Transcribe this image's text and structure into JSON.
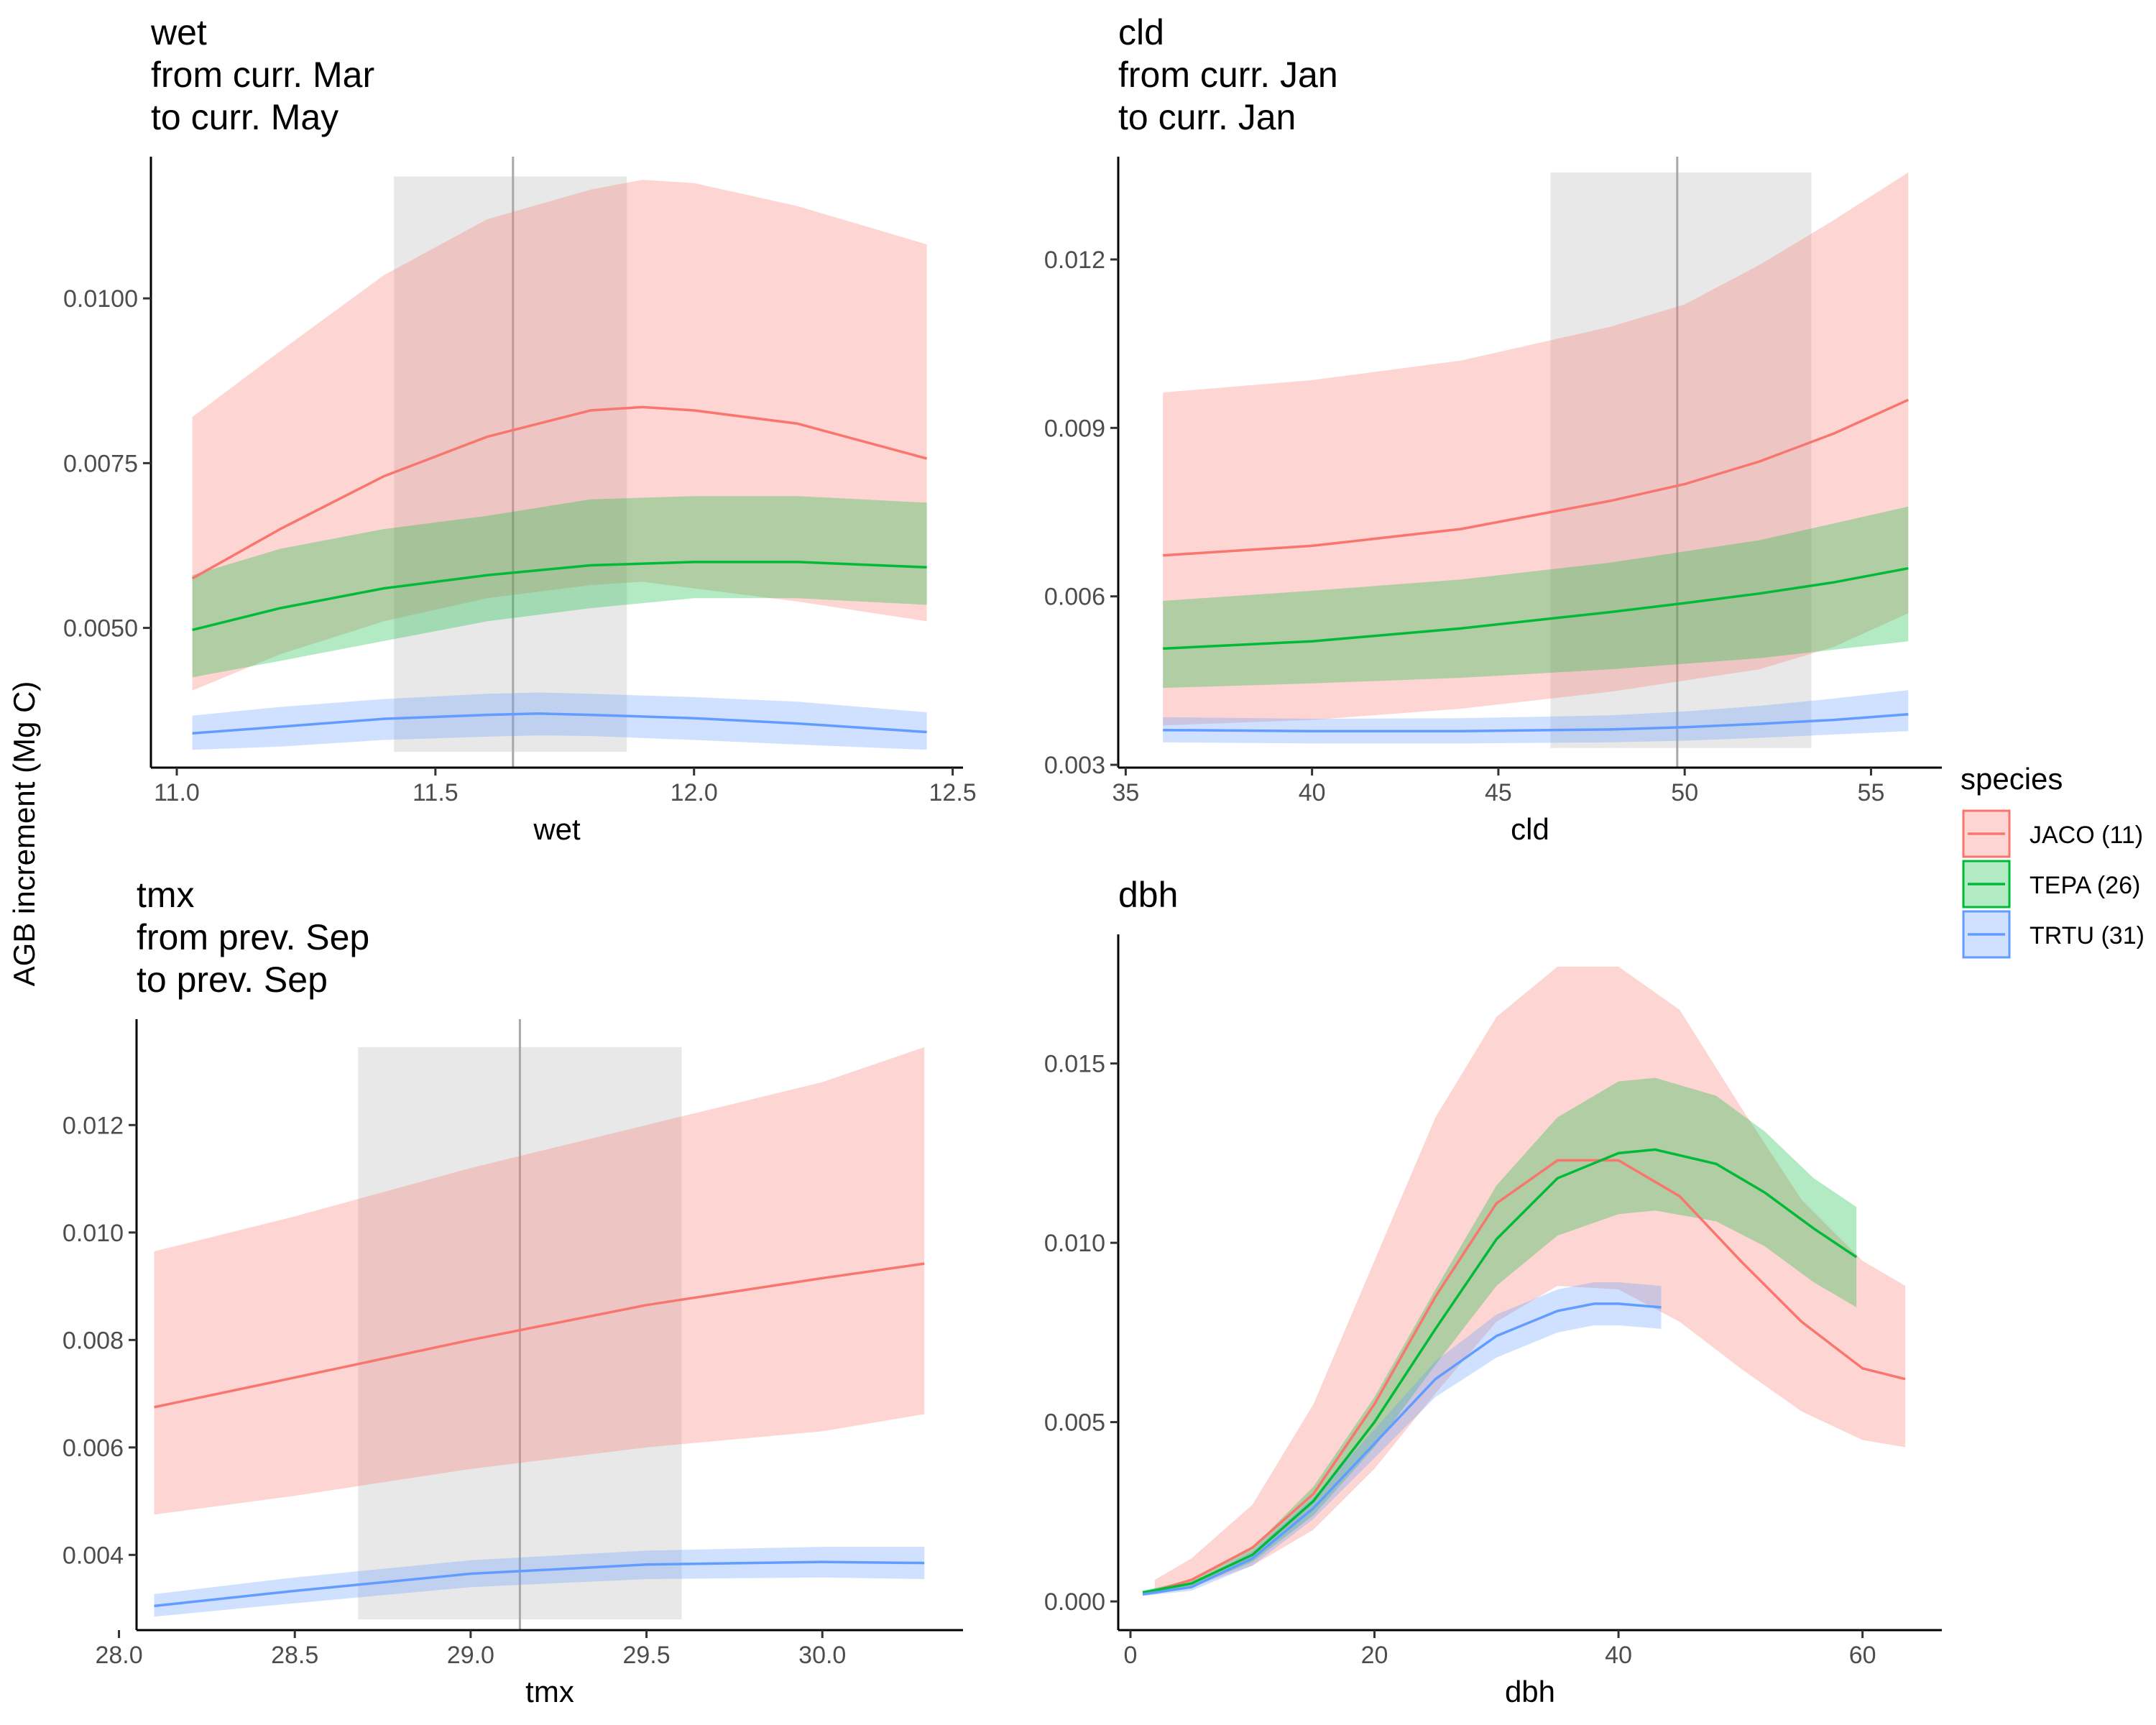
{
  "figure": {
    "y_axis_title": "AGB increment (Mg C)",
    "legend": {
      "title": "species",
      "placement": "right",
      "items": [
        {
          "label": "JACO (11)",
          "color": "#F8766D"
        },
        {
          "label": "TEPA (26)",
          "color": "#00BA38"
        },
        {
          "label": "TRTU (31)",
          "color": "#619CFF"
        }
      ]
    }
  },
  "chart_data": [
    {
      "type": "line",
      "title_lines": [
        "wet",
        "from curr. Mar",
        "to curr. May"
      ],
      "xlabel": "wet",
      "ylabel": "AGB increment (Mg C)",
      "xlim": [
        10.95,
        12.52
      ],
      "ylim": [
        0.00288,
        0.01215
      ],
      "xticks": [
        11.0,
        11.5,
        12.0,
        12.5
      ],
      "xtick_labels": [
        "11.0",
        "11.5",
        "12.0",
        "12.5"
      ],
      "yticks": [
        0.005,
        0.0075,
        0.01
      ],
      "ytick_labels": [
        "0.0050",
        "0.0075",
        "0.0100"
      ],
      "window": {
        "x0": 11.42,
        "x1": 11.87,
        "center": 11.65,
        "y0": 0.00312,
        "y1": 0.01185
      },
      "series": [
        {
          "species": "JACO (11)",
          "color": "#F8766D",
          "x": [
            11.03,
            11.2,
            11.4,
            11.6,
            11.8,
            11.9,
            12.0,
            12.2,
            12.45
          ],
          "y": [
            0.00575,
            0.0065,
            0.0073,
            0.0079,
            0.0083,
            0.00835,
            0.0083,
            0.0081,
            0.00757
          ],
          "lower": [
            0.00405,
            0.0046,
            0.0051,
            0.00545,
            0.00565,
            0.0057,
            0.0056,
            0.0054,
            0.0051
          ],
          "upper": [
            0.0082,
            0.0092,
            0.01035,
            0.0112,
            0.01165,
            0.0118,
            0.01175,
            0.0114,
            0.01082
          ]
        },
        {
          "species": "TEPA (26)",
          "color": "#00BA38",
          "x": [
            11.03,
            11.2,
            11.4,
            11.6,
            11.8,
            12.0,
            12.2,
            12.45
          ],
          "y": [
            0.00497,
            0.0053,
            0.0056,
            0.0058,
            0.00595,
            0.006,
            0.006,
            0.00592
          ],
          "lower": [
            0.00425,
            0.0045,
            0.0048,
            0.0051,
            0.0053,
            0.00545,
            0.00545,
            0.00535
          ],
          "upper": [
            0.0058,
            0.0062,
            0.0065,
            0.0067,
            0.00695,
            0.007,
            0.007,
            0.0069
          ]
        },
        {
          "species": "TRTU (31)",
          "color": "#619CFF",
          "x": [
            11.03,
            11.2,
            11.4,
            11.6,
            11.7,
            11.8,
            12.0,
            12.2,
            12.45
          ],
          "y": [
            0.0034,
            0.0035,
            0.00362,
            0.00368,
            0.0037,
            0.00368,
            0.00363,
            0.00355,
            0.00342
          ],
          "lower": [
            0.00315,
            0.0032,
            0.0033,
            0.00335,
            0.00337,
            0.00336,
            0.0033,
            0.00323,
            0.00315
          ],
          "upper": [
            0.00367,
            0.0038,
            0.00392,
            0.004,
            0.00402,
            0.004,
            0.00395,
            0.00388,
            0.00372
          ]
        }
      ]
    },
    {
      "type": "line",
      "title_lines": [
        "cld",
        "from curr. Jan",
        "to curr. Jan"
      ],
      "xlabel": "cld",
      "ylabel": "AGB increment (Mg C)",
      "xlim": [
        34.8,
        56.9
      ],
      "ylim": [
        0.00295,
        0.01383
      ],
      "xticks": [
        35,
        40,
        45,
        50,
        55
      ],
      "xtick_labels": [
        "35",
        "40",
        "45",
        "50",
        "55"
      ],
      "yticks": [
        0.003,
        0.006,
        0.009,
        0.012
      ],
      "ytick_labels": [
        "0.003",
        "0.006",
        "0.009",
        "0.012"
      ],
      "window": {
        "x0": 46.4,
        "x1": 53.4,
        "center": 49.8,
        "y0": 0.0033,
        "y1": 0.01355
      },
      "series": [
        {
          "species": "JACO (11)",
          "color": "#F8766D",
          "x": [
            36,
            40,
            44,
            48,
            50,
            52,
            54,
            56
          ],
          "y": [
            0.00673,
            0.0069,
            0.0072,
            0.0077,
            0.008,
            0.0084,
            0.0089,
            0.0095
          ],
          "lower": [
            0.0037,
            0.0038,
            0.004,
            0.0043,
            0.0045,
            0.0047,
            0.0051,
            0.0057
          ],
          "upper": [
            0.00963,
            0.00985,
            0.0102,
            0.0108,
            0.0112,
            0.0119,
            0.0127,
            0.01355
          ]
        },
        {
          "species": "TEPA (26)",
          "color": "#00BA38",
          "x": [
            36,
            40,
            44,
            48,
            50,
            52,
            54,
            56
          ],
          "y": [
            0.00507,
            0.0052,
            0.00543,
            0.00572,
            0.00588,
            0.00605,
            0.00625,
            0.0065
          ],
          "lower": [
            0.00437,
            0.00445,
            0.00455,
            0.0047,
            0.0048,
            0.0049,
            0.00505,
            0.0052
          ],
          "upper": [
            0.00592,
            0.0061,
            0.0063,
            0.0066,
            0.0068,
            0.007,
            0.0073,
            0.0076
          ]
        },
        {
          "species": "TRTU (31)",
          "color": "#619CFF",
          "x": [
            36,
            40,
            44,
            48,
            50,
            52,
            54,
            56
          ],
          "y": [
            0.00362,
            0.0036,
            0.0036,
            0.00363,
            0.00367,
            0.00373,
            0.0038,
            0.0039
          ],
          "lower": [
            0.0034,
            0.00338,
            0.00338,
            0.0034,
            0.00343,
            0.00348,
            0.00354,
            0.0036
          ],
          "upper": [
            0.00385,
            0.00382,
            0.00383,
            0.00388,
            0.00395,
            0.00405,
            0.00418,
            0.00433
          ]
        }
      ]
    },
    {
      "type": "line",
      "title_lines": [
        "tmx",
        "from prev. Sep",
        "to prev. Sep"
      ],
      "xlabel": "tmx",
      "ylabel": "AGB increment (Mg C)",
      "xlim": [
        28.05,
        30.4
      ],
      "ylim": [
        0.0026,
        0.01397
      ],
      "xticks": [
        28.0,
        28.5,
        29.0,
        29.5,
        30.0
      ],
      "xtick_labels": [
        "28.0",
        "28.5",
        "29.0",
        "29.5",
        "30.0"
      ],
      "yticks": [
        0.004,
        0.006,
        0.008,
        0.01,
        0.012
      ],
      "ytick_labels": [
        "0.004",
        "0.006",
        "0.008",
        "0.010",
        "0.012"
      ],
      "window": {
        "x0": 28.68,
        "x1": 29.6,
        "center": 29.14,
        "y0": 0.0028,
        "y1": 0.01345
      },
      "series": [
        {
          "species": "JACO (11)",
          "color": "#F8766D",
          "x": [
            28.1,
            28.5,
            29.0,
            29.5,
            30.0,
            30.29
          ],
          "y": [
            0.00675,
            0.0073,
            0.008,
            0.00865,
            0.00915,
            0.00942
          ],
          "lower": [
            0.00475,
            0.0051,
            0.0056,
            0.006,
            0.0063,
            0.00662
          ],
          "upper": [
            0.00965,
            0.0103,
            0.0112,
            0.012,
            0.0128,
            0.01345
          ]
        },
        {
          "species": "TRTU (31)",
          "color": "#619CFF",
          "x": [
            28.1,
            28.5,
            29.0,
            29.5,
            30.0,
            30.29
          ],
          "y": [
            0.00305,
            0.00333,
            0.00365,
            0.00382,
            0.00387,
            0.00385
          ],
          "lower": [
            0.00285,
            0.0031,
            0.0034,
            0.00355,
            0.00358,
            0.00355
          ],
          "upper": [
            0.00327,
            0.00358,
            0.0039,
            0.00408,
            0.00415,
            0.00415
          ]
        }
      ]
    },
    {
      "type": "line",
      "title_lines": [
        "dbh"
      ],
      "xlabel": "dbh",
      "ylabel": "AGB increment (Mg C)",
      "xlim": [
        -1,
        66.5
      ],
      "ylim": [
        -0.0008,
        0.0186
      ],
      "xticks": [
        0,
        20,
        40,
        60
      ],
      "xtick_labels": [
        "0",
        "20",
        "40",
        "60"
      ],
      "yticks": [
        0,
        0.005,
        0.01,
        0.015
      ],
      "ytick_labels": [
        "0.000",
        "0.005",
        "0.010",
        "0.015"
      ],
      "window": null,
      "series": [
        {
          "species": "JACO (11)",
          "color": "#F8766D",
          "x": [
            2,
            5,
            10,
            15,
            20,
            25,
            30,
            35,
            40,
            45,
            50,
            55,
            60,
            63.5
          ],
          "y": [
            0.0003,
            0.0006,
            0.0015,
            0.003,
            0.0055,
            0.0085,
            0.0111,
            0.0123,
            0.0123,
            0.0113,
            0.0095,
            0.0078,
            0.0065,
            0.0062
          ],
          "lower": [
            0.0002,
            0.0004,
            0.001,
            0.002,
            0.0037,
            0.0058,
            0.0078,
            0.0088,
            0.0087,
            0.0078,
            0.0065,
            0.0053,
            0.0045,
            0.0043
          ],
          "upper": [
            0.0006,
            0.0012,
            0.0027,
            0.0055,
            0.0095,
            0.0135,
            0.0163,
            0.0177,
            0.0177,
            0.0165,
            0.0138,
            0.0112,
            0.0095,
            0.0088
          ]
        },
        {
          "species": "TEPA (26)",
          "color": "#00BA38",
          "x": [
            1,
            5,
            10,
            15,
            20,
            25,
            30,
            35,
            40,
            43,
            48,
            52,
            56,
            59.5
          ],
          "y": [
            0.00025,
            0.0005,
            0.0013,
            0.0028,
            0.005,
            0.0076,
            0.0101,
            0.0118,
            0.0125,
            0.0126,
            0.0122,
            0.0114,
            0.0104,
            0.0096
          ],
          "lower": [
            0.0002,
            0.0004,
            0.0011,
            0.0024,
            0.0043,
            0.0066,
            0.0088,
            0.0102,
            0.0108,
            0.0109,
            0.0106,
            0.0099,
            0.0089,
            0.0082
          ],
          "upper": [
            0.0003,
            0.0006,
            0.0015,
            0.0032,
            0.0057,
            0.0087,
            0.0116,
            0.0135,
            0.0145,
            0.0146,
            0.0141,
            0.0131,
            0.0118,
            0.011
          ]
        },
        {
          "species": "TRTU (31)",
          "color": "#619CFF",
          "x": [
            1,
            5,
            10,
            15,
            20,
            25,
            30,
            35,
            38,
            40,
            43.5
          ],
          "y": [
            0.0002,
            0.0004,
            0.0012,
            0.0026,
            0.0044,
            0.0062,
            0.0074,
            0.0081,
            0.0083,
            0.0083,
            0.0082
          ],
          "lower": [
            0.00015,
            0.0003,
            0.001,
            0.0023,
            0.004,
            0.0057,
            0.0068,
            0.0075,
            0.0077,
            0.0077,
            0.0076
          ],
          "upper": [
            0.00025,
            0.0005,
            0.0014,
            0.0029,
            0.0048,
            0.0067,
            0.008,
            0.0087,
            0.0089,
            0.0089,
            0.0088
          ]
        }
      ]
    }
  ]
}
